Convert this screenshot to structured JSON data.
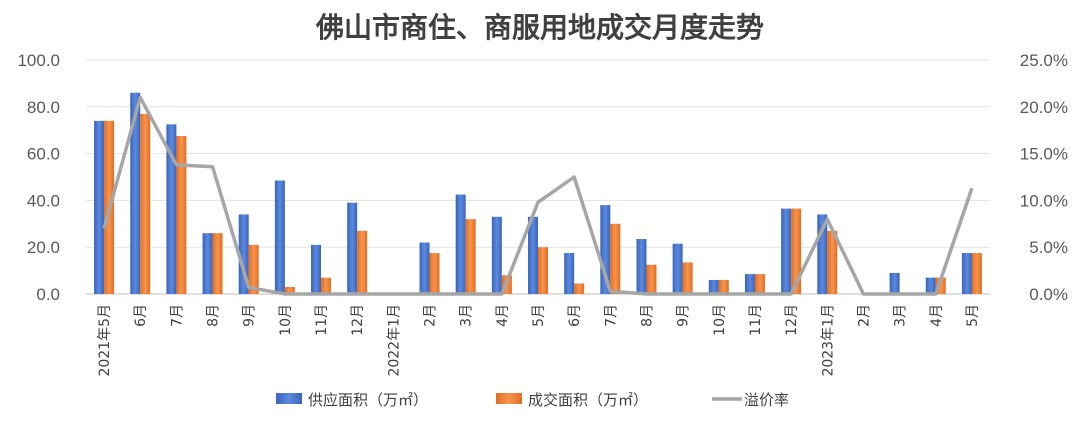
{
  "chart_data": {
    "type": "bar",
    "title": "佛山市商住、商服用地成交月度走势",
    "categories": [
      "2021年5月",
      "6月",
      "7月",
      "8月",
      "9月",
      "10月",
      "11月",
      "12月",
      "2022年1月",
      "2月",
      "3月",
      "4月",
      "5月",
      "6月",
      "7月",
      "8月",
      "9月",
      "10月",
      "11月",
      "12月",
      "2023年1月",
      "2月",
      "3月",
      "4月",
      "5月"
    ],
    "series": [
      {
        "name": "供应面积（万㎡）",
        "kind": "bar",
        "axis": "left",
        "color": "#4472C4",
        "values": [
          74.0,
          86.0,
          72.5,
          26.0,
          34.0,
          48.5,
          21.0,
          39.0,
          0,
          22.0,
          42.5,
          33.0,
          33.0,
          17.5,
          38.0,
          23.5,
          21.5,
          6.0,
          8.5,
          36.5,
          34.0,
          0,
          9.0,
          7.0,
          17.5
        ]
      },
      {
        "name": "成交面积（万㎡）",
        "kind": "bar",
        "axis": "left",
        "color": "#ED7D31",
        "values": [
          74.0,
          77.0,
          67.5,
          26.0,
          21.0,
          3.0,
          7.0,
          27.0,
          0,
          17.5,
          32.0,
          8.0,
          20.0,
          4.5,
          30.0,
          12.5,
          13.5,
          6.0,
          8.5,
          36.5,
          27.0,
          0,
          0,
          7.0,
          17.5
        ]
      },
      {
        "name": "溢价率",
        "kind": "line",
        "axis": "right",
        "color": "#A6A6A6",
        "values": [
          7.0,
          21.0,
          13.8,
          13.6,
          0.7,
          0,
          0,
          0,
          0,
          0,
          0,
          0,
          9.8,
          12.5,
          0.3,
          0,
          0,
          0,
          0,
          0,
          8.0,
          0,
          0,
          0,
          11.3
        ]
      }
    ],
    "y_left": {
      "range": [
        0,
        100
      ],
      "ticks": [
        "0.0",
        "20.0",
        "40.0",
        "60.0",
        "80.0",
        "100.0"
      ]
    },
    "y_right": {
      "range": [
        0,
        25
      ],
      "ticks": [
        "0.0%",
        "5.0%",
        "10.0%",
        "15.0%",
        "20.0%",
        "25.0%"
      ]
    },
    "grid": true,
    "legend": "bottom"
  }
}
